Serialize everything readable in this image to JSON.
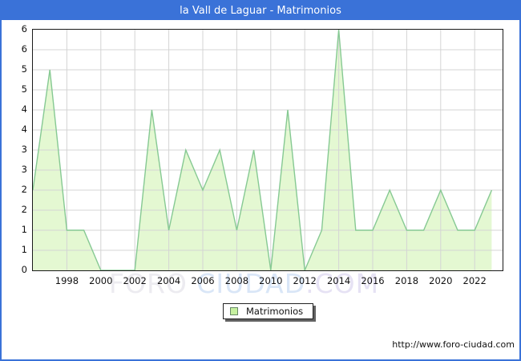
{
  "header": {
    "title": "la Vall de Laguar - Matrimonios"
  },
  "legend": {
    "label": "Matrimonios"
  },
  "footer": {
    "url": "http://www.foro-ciudad.com"
  },
  "watermark": {
    "part1": "FORO",
    "part2": "CIUDAD",
    "part3": ".COM"
  },
  "colors": {
    "frame_blue": "#3a72d8",
    "plot_border": "#1a1a1a",
    "grid": "#d4d4d4",
    "area_fill": "#e4f8d2",
    "area_line": "#86c993",
    "legend_swatch_fill": "#c6f0a0",
    "legend_swatch_border": "#668866"
  },
  "chart_data": {
    "type": "area",
    "title": "la Vall de Laguar - Matrimonios",
    "series_name": "Matrimonios",
    "x": [
      1996,
      1997,
      1998,
      1999,
      2000,
      2001,
      2002,
      2003,
      2004,
      2005,
      2006,
      2007,
      2008,
      2009,
      2010,
      2011,
      2012,
      2013,
      2014,
      2015,
      2016,
      2017,
      2018,
      2019,
      2020,
      2021,
      2022,
      2023
    ],
    "values": [
      2,
      5,
      1,
      1,
      0,
      0,
      0,
      4,
      1,
      3,
      2,
      3,
      1,
      3,
      0,
      4,
      0,
      1,
      6,
      1,
      1,
      2,
      1,
      1,
      2,
      1,
      1,
      2
    ],
    "xlabel": "",
    "ylabel": "",
    "ylim": [
      0,
      6
    ],
    "y_gridline_step": 0.5,
    "y_tick_labels": [
      "6",
      "6",
      "5",
      "5",
      "4",
      "4",
      "3",
      "3",
      "2",
      "2",
      "1",
      "1",
      "0"
    ],
    "x_tick_years": [
      1998,
      2000,
      2002,
      2004,
      2006,
      2008,
      2010,
      2012,
      2014,
      2016,
      2018,
      2020,
      2022
    ],
    "grid": true,
    "legend_position": "bottom-center"
  }
}
